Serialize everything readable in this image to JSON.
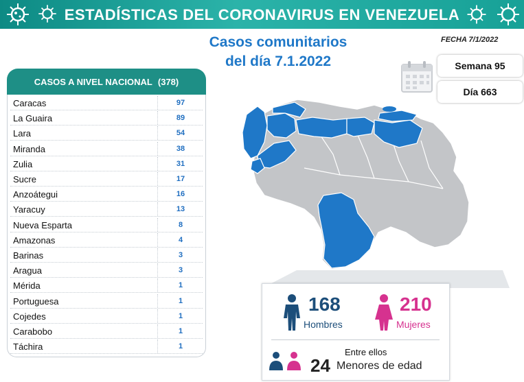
{
  "header": {
    "title": "ESTADÍSTICAS DEL CORONAVIRUS EN VENEZUELA"
  },
  "subtitle": {
    "line1": "Casos comunitarios",
    "line2": "del día 7.1.2022"
  },
  "fecha": "FECHA 7/1/2022",
  "semana": "Semana 95",
  "dia": "Día 663",
  "table": {
    "header": "CASOS A NIVEL NACIONAL",
    "total": "(378)",
    "rows": [
      {
        "name": "Caracas",
        "value": "97"
      },
      {
        "name": "La Guaira",
        "value": "89"
      },
      {
        "name": "Lara",
        "value": "54"
      },
      {
        "name": "Miranda",
        "value": "38"
      },
      {
        "name": "Zulia",
        "value": "31"
      },
      {
        "name": "Sucre",
        "value": "17"
      },
      {
        "name": "Anzoátegui",
        "value": "16"
      },
      {
        "name": "Yaracuy",
        "value": "13"
      },
      {
        "name": "Nueva Esparta",
        "value": "8"
      },
      {
        "name": "Amazonas",
        "value": "4"
      },
      {
        "name": "Barinas",
        "value": "3"
      },
      {
        "name": "Aragua",
        "value": "3"
      },
      {
        "name": "Mérida",
        "value": "1"
      },
      {
        "name": "Portuguesa",
        "value": "1"
      },
      {
        "name": "Cojedes",
        "value": "1"
      },
      {
        "name": "Carabobo",
        "value": "1"
      },
      {
        "name": "Táchira",
        "value": "1"
      }
    ]
  },
  "stats": {
    "hombres_num": "168",
    "hombres_label": "Hombres",
    "mujeres_num": "210",
    "mujeres_label": "Mujeres",
    "entre_ellos": "Entre ellos",
    "menores_num": "24",
    "menores_label": "Menores de edad"
  },
  "colors": {
    "teal": "#1e8f86",
    "blue": "#1f6ec0",
    "map_blue": "#1f78c8",
    "map_gray": "#c3c5c8",
    "male": "#1c4e7a",
    "female": "#d6328f"
  },
  "icons": [
    "virus-icon",
    "calendar-icon",
    "man-icon",
    "woman-icon",
    "child-icon"
  ]
}
